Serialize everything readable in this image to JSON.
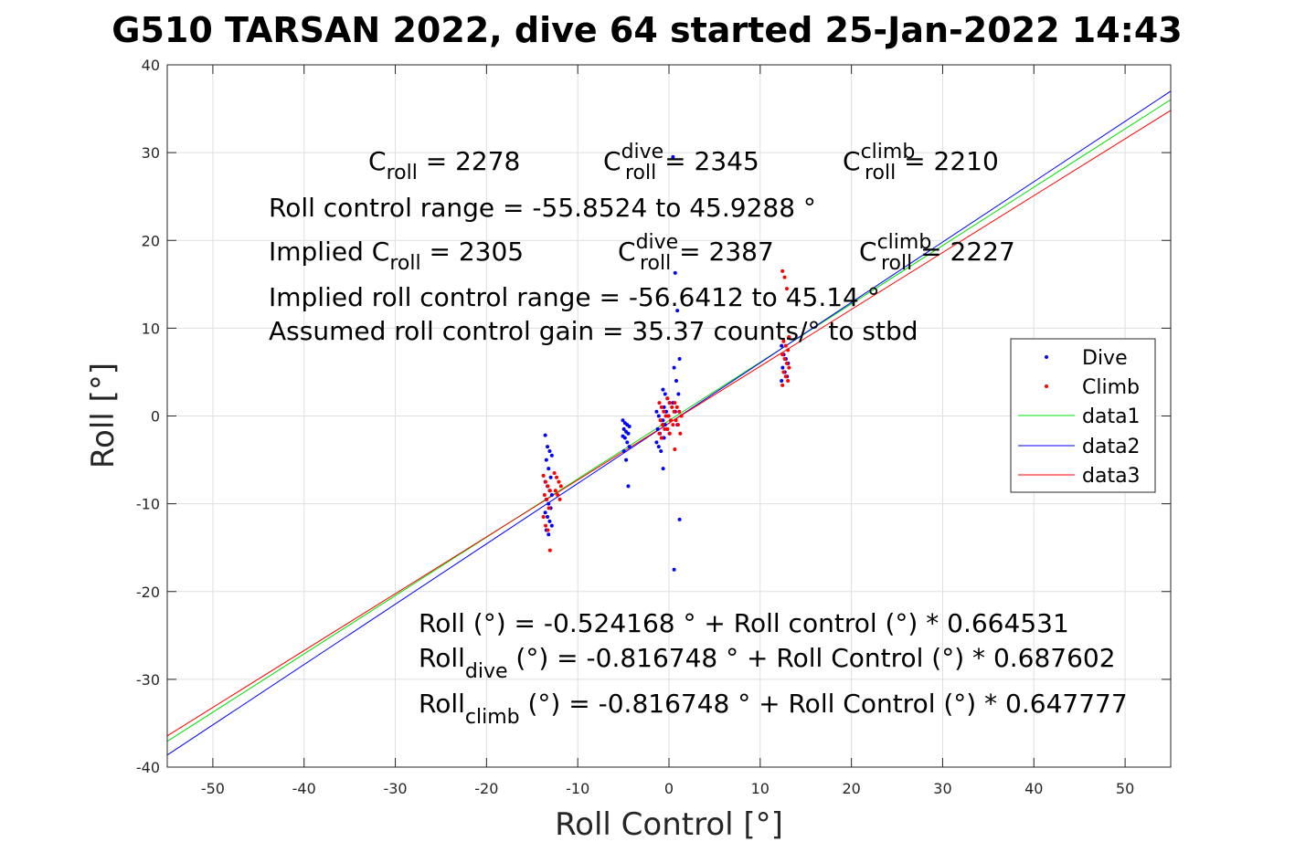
{
  "title": "G510 TARSAN 2022, dive 64 started 25-Jan-2022 14:43",
  "annotations": {
    "line1": {
      "c_roll_label": "C",
      "c_roll_sub": "roll",
      "c_roll_value": " = 2278",
      "c_dive_label": "C",
      "c_dive_sup": "dive",
      "c_dive_sub": "roll",
      "c_dive_value": " = 2345",
      "c_climb_label": "C",
      "c_climb_sup": "climb",
      "c_climb_sub": "roll",
      "c_climb_value": " = 2210"
    },
    "line2": "Roll control range = -55.8524 to 45.9288 °",
    "line3": {
      "implied_label": "Implied C",
      "implied_sub": "roll",
      "implied_value": " = 2305",
      "c_dive_label": "C",
      "c_dive_sup": "dive",
      "c_dive_sub": "roll",
      "c_dive_value": " = 2387",
      "c_climb_label": "C",
      "c_climb_sup": "climb",
      "c_climb_sub": "roll",
      "c_climb_value": " = 2227"
    },
    "line4": "Implied roll control range = -56.6412 to 45.14 °",
    "line5": "Assumed roll control gain = 35.37 counts/° to stbd",
    "fit1": "Roll (°) = -0.524168 ° + Roll control (°) * 0.664531",
    "fit2": {
      "label": "Roll",
      "sub": "dive",
      "rest": " (°) = -0.816748 ° + Roll Control (°) * 0.687602"
    },
    "fit3": {
      "label": "Roll",
      "sub": "climb",
      "rest": " (°) = -0.816748 ° + Roll Control (°) * 0.647777"
    }
  },
  "chart_data": {
    "type": "scatter",
    "xlabel": "Roll Control [°]",
    "ylabel": "Roll [°]",
    "xlim": [
      -55,
      55
    ],
    "ylim": [
      -40,
      40
    ],
    "xticks": [
      -50,
      -40,
      -30,
      -20,
      -10,
      0,
      10,
      20,
      30,
      40,
      50
    ],
    "yticks": [
      -40,
      -30,
      -20,
      -10,
      0,
      10,
      20,
      30,
      40
    ],
    "grid": true,
    "legend_position": "right",
    "series": [
      {
        "name": "Dive",
        "kind": "points",
        "color": "#0000ff",
        "clusters": [
          {
            "x": -13.2,
            "y": [
              -2.2,
              -3.5,
              -4.0,
              -4.5,
              -5.0,
              -6.0,
              -7.0,
              -7.5,
              -8.0,
              -8.5,
              -9.0,
              -9.5,
              -10.0,
              -10.5,
              -11.0,
              -11.5,
              -12.0,
              -12.5,
              -13.0,
              -13.5
            ]
          },
          {
            "x": -4.7,
            "y": [
              -0.5,
              -0.8,
              -1.0,
              -1.2,
              -1.5,
              -1.8,
              -2.0,
              -2.3,
              -2.5,
              -3.0,
              -3.5,
              -4.0,
              -5.0,
              -8.0
            ]
          },
          {
            "x": -1.0,
            "y": [
              0.5,
              0.0,
              -0.5,
              -1.0,
              -1.5,
              -2.0,
              -2.5,
              -3.0,
              -3.5,
              -4.0,
              -6.0
            ]
          },
          {
            "x": -0.3,
            "y": [
              3.0,
              2.5,
              2.0,
              1.5,
              1.0,
              0.5,
              0.0,
              -0.5,
              -1.0,
              -1.5,
              -2.0,
              -2.5
            ]
          },
          {
            "x": 0.8,
            "y": [
              29.5,
              16.3,
              12.0,
              6.5,
              5.5,
              4.0,
              2.5,
              1.5,
              0.5,
              -1.0,
              -11.8,
              -17.5
            ]
          },
          {
            "x": 12.7,
            "y": [
              8.0,
              7.0,
              6.5,
              6.0,
              5.5,
              5.0,
              4.5,
              4.0
            ]
          }
        ]
      },
      {
        "name": "Climb",
        "kind": "points",
        "color": "#ff0000",
        "clusters": [
          {
            "x": -13.4,
            "y": [
              -6.8,
              -7.5,
              -8.0,
              -8.5,
              -9.0,
              -9.5,
              -10.5,
              -11.5,
              -12.5,
              -13.0,
              -15.3
            ]
          },
          {
            "x": -12.2,
            "y": [
              -6.5,
              -7.0,
              -7.5,
              -8.0,
              -8.5,
              -9.0,
              -9.5
            ]
          },
          {
            "x": -0.7,
            "y": [
              1.5,
              1.0,
              0.5,
              0.0,
              -0.5,
              -1.0,
              -1.5,
              -2.0,
              -2.5
            ]
          },
          {
            "x": 0.2,
            "y": [
              2.0,
              1.5,
              1.0,
              0.5,
              0.0,
              -0.5,
              -1.0,
              -1.5,
              -2.0
            ]
          },
          {
            "x": 1.0,
            "y": [
              1.5,
              1.0,
              0.5,
              0.0,
              -0.5,
              -1.0,
              -2.0,
              -3.8
            ]
          },
          {
            "x": 12.8,
            "y": [
              16.5,
              15.8,
              14.5,
              9.0,
              8.5,
              8.0,
              7.5,
              7.0,
              6.5,
              6.0,
              5.5,
              5.0,
              4.5,
              4.0,
              3.5
            ]
          }
        ]
      },
      {
        "name": "data1",
        "kind": "line",
        "color": "#00e000",
        "x": [
          -55,
          55
        ],
        "y": [
          -37.07,
          36.03
        ]
      },
      {
        "name": "data2",
        "kind": "line",
        "color": "#0000ff",
        "x": [
          -55,
          55
        ],
        "y": [
          -38.63,
          37.0
        ]
      },
      {
        "name": "data3",
        "kind": "line",
        "color": "#ff0000",
        "x": [
          -55,
          55
        ],
        "y": [
          -36.44,
          34.81
        ]
      }
    ]
  }
}
